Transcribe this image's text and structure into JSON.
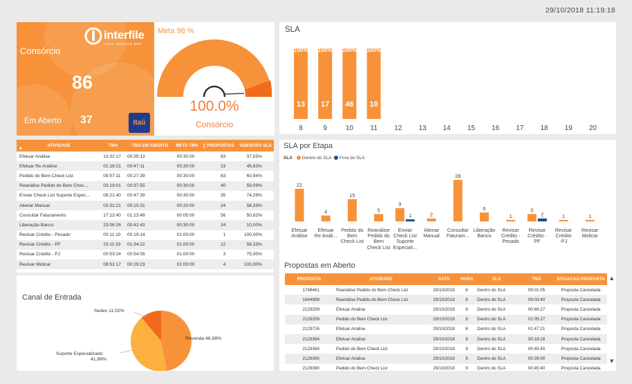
{
  "datetime": "29/10/2018 11:19:18",
  "kpi": {
    "label_top": "Consórcio",
    "value_big": "86",
    "label_bottom": "Em Aberto",
    "value_small": "37",
    "brand": "interfile",
    "brand_sub": "FULL SERVICE BPO",
    "bank_logo": "Itaú",
    "color": "#f7923a"
  },
  "gauge": {
    "meta_label": "Meta 98 %",
    "value_label": "100.0%",
    "sub_label": "Consórcio",
    "value": 100.0,
    "target": 98
  },
  "sla_chart": {
    "title": "SLA",
    "chart_data": {
      "type": "bar",
      "categories": [
        "8",
        "9",
        "10",
        "11",
        "12",
        "13",
        "14",
        "15",
        "16",
        "17",
        "18",
        "19",
        "20"
      ],
      "values": [
        13,
        17,
        46,
        10,
        null,
        null,
        null,
        null,
        null,
        null,
        null,
        null,
        null
      ],
      "pct_labels": [
        "100%",
        "100%",
        "100%",
        "100%",
        "",
        "",
        "",
        "",
        "",
        "",
        "",
        "",
        ""
      ],
      "color": "#f7923a"
    }
  },
  "activity_table": {
    "headers": [
      "ATIVIDADE",
      "TMA",
      "TMA EM ABERTO",
      "META TMA",
      "∑ PROPOSTAS",
      "%DENTRO SLA"
    ],
    "rows": [
      [
        "Efetuar Análise",
        "13:32:17",
        "00:35:13",
        "00:30:00",
        "83",
        "37,55%"
      ],
      [
        "Efetuar Re Análise",
        "01:18:21",
        "00:47:11",
        "00:30:00",
        "23",
        "45,83%"
      ],
      [
        "Pedido do Bem Check List",
        "09:57:11",
        "00:27:39",
        "00:30:00",
        "63",
        "60,94%"
      ],
      [
        "Reanálise Pedido do Bem Chec...",
        "03:18:01",
        "00:37:55",
        "00:30:00",
        "40",
        "59,09%"
      ],
      [
        "Enviar Check List Suporte Espec...",
        "08:21:40",
        "00:47:39",
        "00:30:00",
        "35",
        "74,29%"
      ],
      [
        "Alienar Manual",
        "03:32:21",
        "00:15:31",
        "00:20:00",
        "24",
        "58,33%"
      ],
      [
        "Consultar Faturamento",
        "17:22:40",
        "01:13:49",
        "00:05:00",
        "56",
        "50,82%"
      ],
      [
        "Liberação Banco",
        "23:06:26",
        "00:42:43",
        "00:30:00",
        "24",
        "10,00%"
      ],
      [
        "Revisar Crédito - Pesado",
        "00:11:10",
        "00:19:14",
        "01:00:00",
        "1",
        "100,00%"
      ],
      [
        "Revisar Crédito - PF",
        "23:11:33",
        "01:34:22",
        "01:00:00",
        "12",
        "58,33%"
      ],
      [
        "Revisar Crédito - PJ",
        "00:53:24",
        "00:54:05",
        "01:00:00",
        "3",
        "75,00%"
      ],
      [
        "Revisar Molicar",
        "08:51:17",
        "00:29:23",
        "01:00:00",
        "4",
        "100,00%"
      ]
    ]
  },
  "channel": {
    "title": "Canal de Entrada",
    "chart_data": {
      "type": "pie",
      "slices": [
        {
          "name": "Revenda",
          "value": 46.98,
          "label": "Revenda 46,98%",
          "color": "#f7923a"
        },
        {
          "name": "Suporte Especializado",
          "value": 41.99,
          "label1": "Suporte Especializado",
          "label2": "41,99%",
          "color": "#fbb040"
        },
        {
          "name": "Sedex",
          "value": 11.02,
          "label": "Sedex 11,02%",
          "color": "#f26a1b"
        }
      ]
    }
  },
  "etapa": {
    "title": "SLA por Etapa",
    "legend_title": "SLA",
    "legend": [
      {
        "name": "Dentro do SLA",
        "color": "#f7923a"
      },
      {
        "name": "Fora do SLA",
        "color": "#1f4e8c"
      }
    ],
    "chart_data": {
      "type": "bar",
      "categories": [
        [
          "Efetuar",
          "Análise"
        ],
        [
          "Efetuar",
          "Re Análi..."
        ],
        [
          "Pedido do",
          "Bem",
          "Check List"
        ],
        [
          "Reanálise",
          "Pedido do",
          "Bem",
          "Check List"
        ],
        [
          "Enviar",
          "Check List",
          "Suporte",
          "Especiali..."
        ],
        [
          "Alienar",
          "Manual"
        ],
        [
          "Consultar",
          "Faturam..."
        ],
        [
          "Liberação",
          "Banco"
        ],
        [
          "Revisar",
          "Crédito -",
          "Pesado"
        ],
        [
          "Revisar",
          "Crédito -",
          "PF"
        ],
        [
          "Revisar",
          "Crédito",
          "-PJ"
        ],
        [
          "Revisar",
          "Molicar"
        ]
      ],
      "series": [
        {
          "name": "Dentro do SLA",
          "values": [
            22,
            4,
            15,
            5,
            9,
            2,
            28,
            6,
            1,
            5,
            1,
            1
          ]
        },
        {
          "name": "Fora do SLA",
          "values": [
            null,
            null,
            null,
            null,
            1,
            null,
            null,
            null,
            null,
            2,
            null,
            null
          ]
        }
      ]
    }
  },
  "proposals": {
    "title": "Propostas em Aberto",
    "headers": [
      "PROPOSTA",
      "ATIVIDADE",
      "DATA",
      "HORA",
      "SLA",
      "TMA",
      "SITUACAO PROPOSTA"
    ],
    "rows": [
      [
        "1748461",
        "Reanálise Pedido do Bem Check List",
        "29/10/2018",
        "8",
        "Dentro do SLA",
        "09:01:05",
        "Proposta Cancelada"
      ],
      [
        "1844998",
        "Reanálise Pedido do Bem Check List",
        "29/10/2018",
        "8",
        "Dentro do SLA",
        "09:03:40",
        "Proposta Cancelada"
      ],
      [
        "2129259",
        "Efetuar Análise",
        "29/10/2018",
        "8",
        "Dentro do SLA",
        "00:46:27",
        "Proposta Cancelada"
      ],
      [
        "2129259",
        "Pedido do Bem Check List",
        "29/10/2018",
        "8",
        "Dentro do SLA",
        "01:05:27",
        "Proposta Cancelada"
      ],
      [
        "2129726",
        "Efetuar Análise",
        "29/10/2018",
        "8",
        "Dentro do SLA",
        "01:47:21",
        "Proposta Cancelada"
      ],
      [
        "2129384",
        "Efetuar Análise",
        "29/10/2018",
        "9",
        "Dentro do SLA",
        "00:18:18",
        "Proposta Cancelada"
      ],
      [
        "2129384",
        "Pedido do Bem Check List",
        "29/10/2018",
        "9",
        "Dentro do SLA",
        "00:45:40",
        "Proposta Cancelada"
      ],
      [
        "2129390",
        "Efetuar Análise",
        "29/10/2018",
        "9",
        "Dentro do SLA",
        "00:26:00",
        "Proposta Cancelada"
      ],
      [
        "2129390",
        "Pedido do Bem Check List",
        "29/10/2018",
        "9",
        "Dentro do SLA",
        "00:45:40",
        "Proposta Cancelada"
      ]
    ]
  }
}
